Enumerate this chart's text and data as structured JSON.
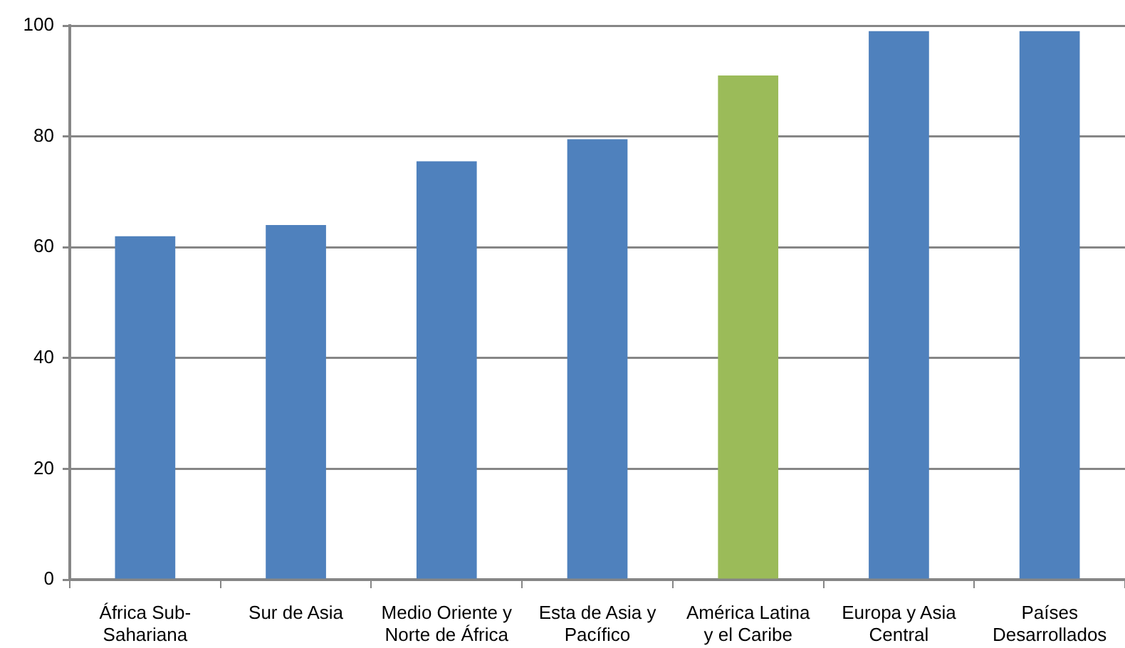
{
  "chart_data": {
    "type": "bar",
    "categories": [
      "África Sub-Sahariana",
      "Sur de Asia",
      "Medio Oriente y Norte de África",
      "Esta de Asia y Pacífico",
      "América Latina y el Caribe",
      "Europa y Asia Central",
      "Países Desarrollados"
    ],
    "values": [
      62,
      64,
      75.5,
      79.5,
      91,
      99,
      99
    ],
    "colors": [
      "#4f81bd",
      "#4f81bd",
      "#4f81bd",
      "#4f81bd",
      "#9bbb59",
      "#4f81bd",
      "#4f81bd"
    ],
    "ylim": [
      0,
      100
    ],
    "yticks": [
      0,
      20,
      40,
      60,
      80,
      100
    ],
    "grid": "y"
  }
}
